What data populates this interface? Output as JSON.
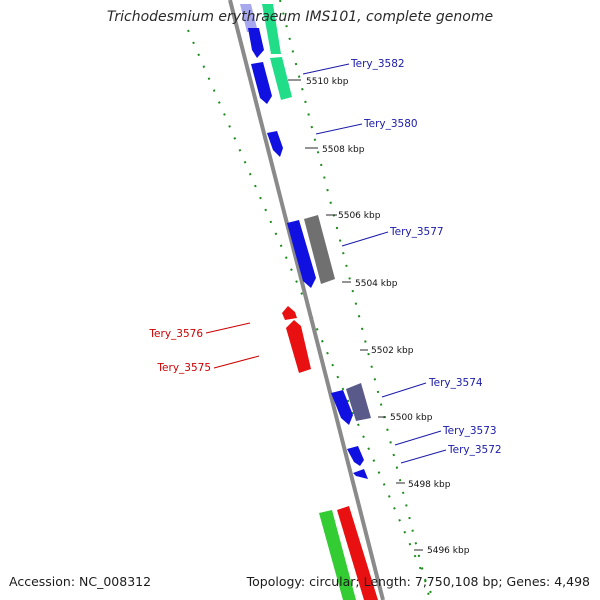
{
  "title": "Trichodesmium erythraeum IMS101, complete genome",
  "footer": {
    "accession": "Accession: NC_008312",
    "summary": "Topology: circular; Length: 7,750,108 bp; Genes: 4,498"
  },
  "ticks": [
    "5510 kbp",
    "5508 kbp",
    "5506 kbp",
    "5504 kbp",
    "5502 kbp",
    "5500 kbp",
    "5498 kbp",
    "5496 kbp"
  ],
  "gene_labels": [
    {
      "text": "Tery_3582",
      "strand": "forward"
    },
    {
      "text": "Tery_3580",
      "strand": "forward"
    },
    {
      "text": "Tery_3577",
      "strand": "forward"
    },
    {
      "text": "Tery_3576",
      "strand": "reverse"
    },
    {
      "text": "Tery_3575",
      "strand": "reverse"
    },
    {
      "text": "Tery_3574",
      "strand": "forward"
    },
    {
      "text": "Tery_3573",
      "strand": "forward"
    },
    {
      "text": "Tery_3572",
      "strand": "forward"
    }
  ],
  "colors": {
    "forward_label": "#1a1aa8",
    "reverse_label": "#cc0000",
    "cds_forward": "#1010e0",
    "cds_reverse": "#e81010",
    "backbone": "#8a8a8a",
    "dotted_track": "#1c8c1c",
    "green_feature": "#33cc33",
    "teal_feature": "#22dd88",
    "gray_feature": "#707070"
  }
}
